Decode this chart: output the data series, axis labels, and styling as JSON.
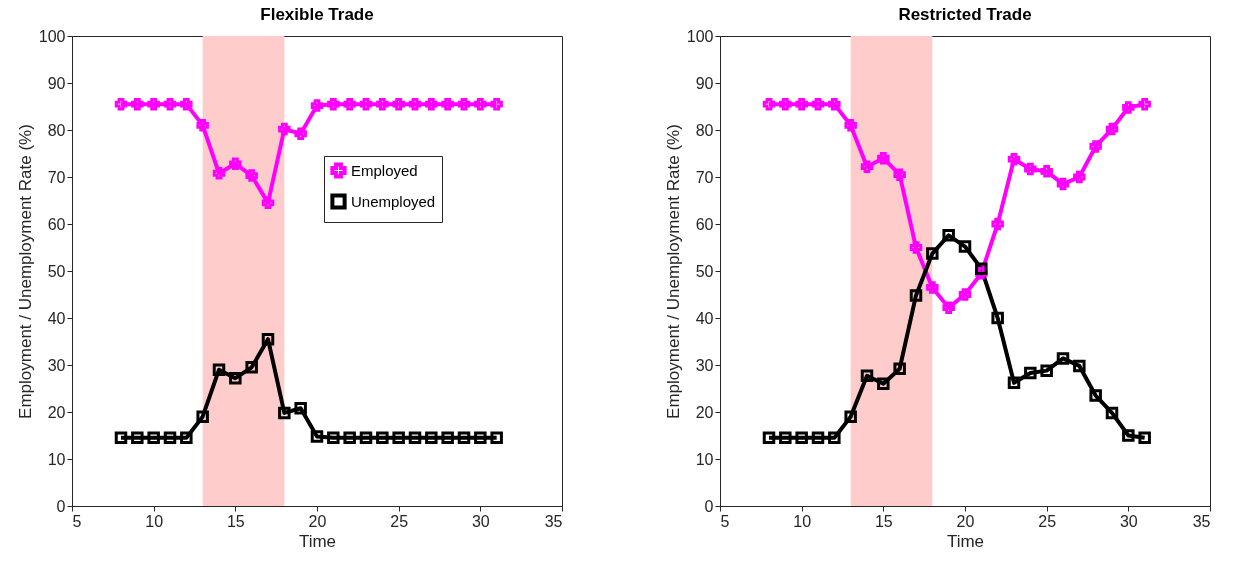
{
  "chart_data": [
    {
      "type": "line",
      "title": "Flexible Trade",
      "xlabel": "Time",
      "ylabel": "Employment / Unemployment Rate (%)",
      "x": [
        8,
        9,
        10,
        11,
        12,
        13,
        14,
        15,
        16,
        17,
        18,
        19,
        20,
        21,
        22,
        23,
        24,
        25,
        26,
        27,
        28,
        29,
        30,
        31
      ],
      "series": [
        {
          "name": "Employed",
          "color": "#ff00ff",
          "marker": "cross",
          "values": [
            85.5,
            85.5,
            85.5,
            85.5,
            85.5,
            81,
            70.8,
            72.8,
            70.3,
            64.5,
            80.2,
            79.2,
            85.2,
            85.5,
            85.5,
            85.5,
            85.5,
            85.5,
            85.5,
            85.5,
            85.5,
            85.5,
            85.5,
            85.5
          ]
        },
        {
          "name": "Unemployed",
          "color": "#000000",
          "marker": "square",
          "values": [
            14.5,
            14.5,
            14.5,
            14.5,
            14.5,
            19,
            29,
            27.2,
            29.5,
            35.5,
            19.8,
            20.8,
            14.8,
            14.5,
            14.5,
            14.5,
            14.5,
            14.5,
            14.5,
            14.5,
            14.5,
            14.5,
            14.5,
            14.5
          ]
        }
      ],
      "bands": [
        {
          "axis": "x",
          "from": 13,
          "to": 18,
          "color": "#ffcccc"
        }
      ],
      "xlim": [
        5,
        35
      ],
      "xticks": [
        5,
        10,
        15,
        20,
        25,
        30,
        35
      ],
      "ylim": [
        0,
        100
      ],
      "yticks": [
        0,
        10,
        20,
        30,
        40,
        50,
        60,
        70,
        80,
        90,
        100
      ],
      "grid": false,
      "legend": "top right"
    },
    {
      "type": "line",
      "title": "Restricted Trade",
      "xlabel": "Time",
      "ylabel": "Employment / Unemployment Rate (%)",
      "x": [
        8,
        9,
        10,
        11,
        12,
        13,
        14,
        15,
        16,
        17,
        18,
        19,
        20,
        21,
        22,
        23,
        24,
        25,
        26,
        27,
        28,
        29,
        30,
        31
      ],
      "series": [
        {
          "color": "#ff00ff",
          "marker": "cross",
          "values": [
            85.5,
            85.5,
            85.5,
            85.5,
            85.5,
            81,
            72.2,
            74,
            70.5,
            55,
            46.5,
            42.2,
            45,
            49.5,
            60,
            73.8,
            71.7,
            71.2,
            68.5,
            70,
            76.5,
            80.2,
            84.8,
            85.5
          ]
        },
        {
          "color": "#000000",
          "marker": "square",
          "values": [
            14.5,
            14.5,
            14.5,
            14.5,
            14.5,
            19,
            27.7,
            26,
            29.2,
            44.8,
            53.7,
            57.6,
            55.2,
            50.5,
            40,
            26.2,
            28.3,
            28.8,
            31.4,
            29.8,
            23.5,
            19.8,
            15,
            14.5
          ]
        }
      ],
      "bands": [
        {
          "axis": "x",
          "from": 13,
          "to": 18,
          "color": "#ffcccc"
        }
      ],
      "xlim": [
        5,
        35
      ],
      "xticks": [
        5,
        10,
        15,
        20,
        25,
        30,
        35
      ],
      "ylim": [
        0,
        100
      ],
      "yticks": [
        0,
        10,
        20,
        30,
        40,
        50,
        60,
        70,
        80,
        90,
        100
      ],
      "grid": false,
      "legend": false
    }
  ]
}
